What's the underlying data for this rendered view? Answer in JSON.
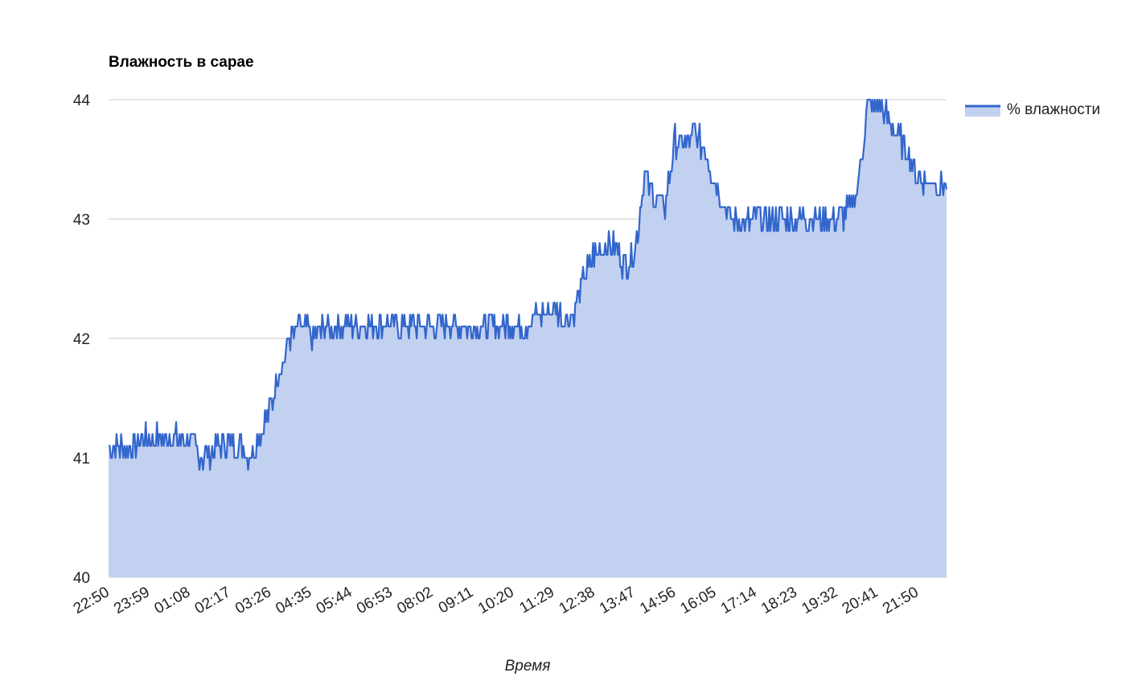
{
  "chart_data": {
    "type": "area",
    "title": "Влажность в сарае",
    "xlabel": "Время",
    "ylabel": "",
    "ylim": [
      40,
      44
    ],
    "yticks": [
      40,
      41,
      42,
      43,
      44
    ],
    "grid": true,
    "legend": {
      "position": "right",
      "entries": [
        "% влажности"
      ]
    },
    "x_tick_labels": [
      "22:50",
      "23:59",
      "01:08",
      "02:17",
      "03:26",
      "04:35",
      "05:44",
      "06:53",
      "08:02",
      "09:11",
      "10:20",
      "11:29",
      "12:38",
      "13:47",
      "14:56",
      "16:05",
      "17:14",
      "18:23",
      "19:32",
      "20:41",
      "21:50"
    ],
    "x_range": [
      "22:50",
      "22:39"
    ],
    "colors": {
      "line": "#3366cc",
      "fill": "#c2d1f0",
      "grid": "#cccccc"
    },
    "series": [
      {
        "name": "% влажности",
        "x": [
          "22:50",
          "23:25",
          "23:59",
          "00:34",
          "01:08",
          "01:25",
          "01:43",
          "02:00",
          "02:17",
          "02:34",
          "02:52",
          "03:09",
          "03:26",
          "03:43",
          "04:00",
          "04:18",
          "04:35",
          "05:10",
          "05:44",
          "06:19",
          "06:53",
          "07:28",
          "08:02",
          "08:37",
          "09:11",
          "09:46",
          "10:20",
          "10:38",
          "10:55",
          "11:12",
          "11:29",
          "11:46",
          "12:04",
          "12:21",
          "12:38",
          "12:55",
          "13:13",
          "13:30",
          "13:47",
          "14:04",
          "14:21",
          "14:39",
          "14:56",
          "15:13",
          "15:30",
          "15:48",
          "16:05",
          "16:22",
          "16:39",
          "16:57",
          "17:14",
          "17:48",
          "18:23",
          "18:57",
          "19:32",
          "19:49",
          "20:06",
          "20:24",
          "20:41",
          "20:58",
          "21:15",
          "21:33",
          "21:50",
          "22:07",
          "22:24",
          "22:39"
        ],
        "values": [
          41.05,
          41.1,
          41.15,
          41.15,
          41.15,
          41.0,
          41.0,
          41.1,
          41.1,
          41.1,
          41.0,
          41.2,
          41.4,
          41.75,
          42.0,
          42.1,
          42.0,
          42.1,
          42.1,
          42.1,
          42.1,
          42.1,
          42.1,
          42.1,
          42.1,
          42.1,
          42.1,
          42.1,
          42.15,
          42.2,
          42.25,
          42.15,
          42.2,
          42.5,
          42.7,
          42.75,
          42.75,
          42.6,
          42.7,
          43.35,
          43.15,
          43.1,
          43.65,
          43.6,
          43.7,
          43.55,
          43.3,
          43.05,
          42.95,
          42.95,
          43.0,
          42.98,
          43.0,
          43.0,
          42.98,
          43.05,
          43.2,
          43.9,
          43.95,
          43.85,
          43.7,
          43.55,
          43.35,
          43.3,
          43.3,
          43.25
        ]
      }
    ]
  }
}
